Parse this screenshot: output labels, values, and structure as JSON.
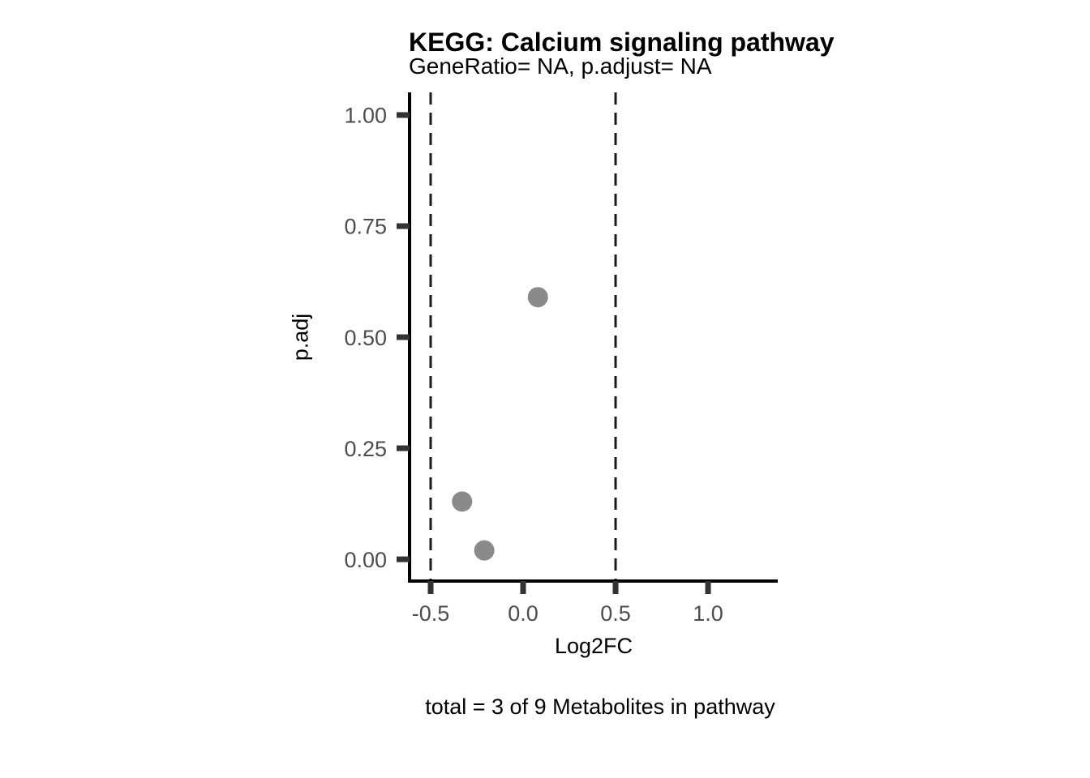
{
  "chart_data": {
    "type": "scatter",
    "title": "KEGG: Calcium signaling pathway",
    "subtitle": "GeneRatio= NA, p.adjust= NA",
    "xlabel": "Log2FC",
    "ylabel": "p.adj",
    "caption": "total = 3 of 9 Metabolites in pathway",
    "points": [
      {
        "x": 0.08,
        "y": 0.59
      },
      {
        "x": -0.33,
        "y": 0.13
      },
      {
        "x": -0.21,
        "y": 0.02
      }
    ],
    "x_ticks": {
      "values": [
        -0.5,
        0.0,
        0.5,
        1.0
      ],
      "labels": [
        "-0.5",
        "0.0",
        "0.5",
        "1.0"
      ]
    },
    "y_ticks": {
      "values": [
        0.0,
        0.25,
        0.5,
        0.75,
        1.0
      ],
      "labels": [
        "0.00",
        "0.25",
        "0.50",
        "0.75",
        "1.00"
      ]
    },
    "xlim": [
      -0.614,
      1.377
    ],
    "ylim": [
      -0.049,
      1.051
    ],
    "vlines": [
      -0.5,
      0.5
    ],
    "vline_style": "dashed",
    "grid": false,
    "legend": "none",
    "colors": {
      "point": "#8a8a8a",
      "axis_line": "#000000",
      "tick_mark": "#333333",
      "tick_label": "#4d4d4d",
      "vline": "#1a1a1a",
      "text": "#000000",
      "background": "#ffffff"
    }
  }
}
